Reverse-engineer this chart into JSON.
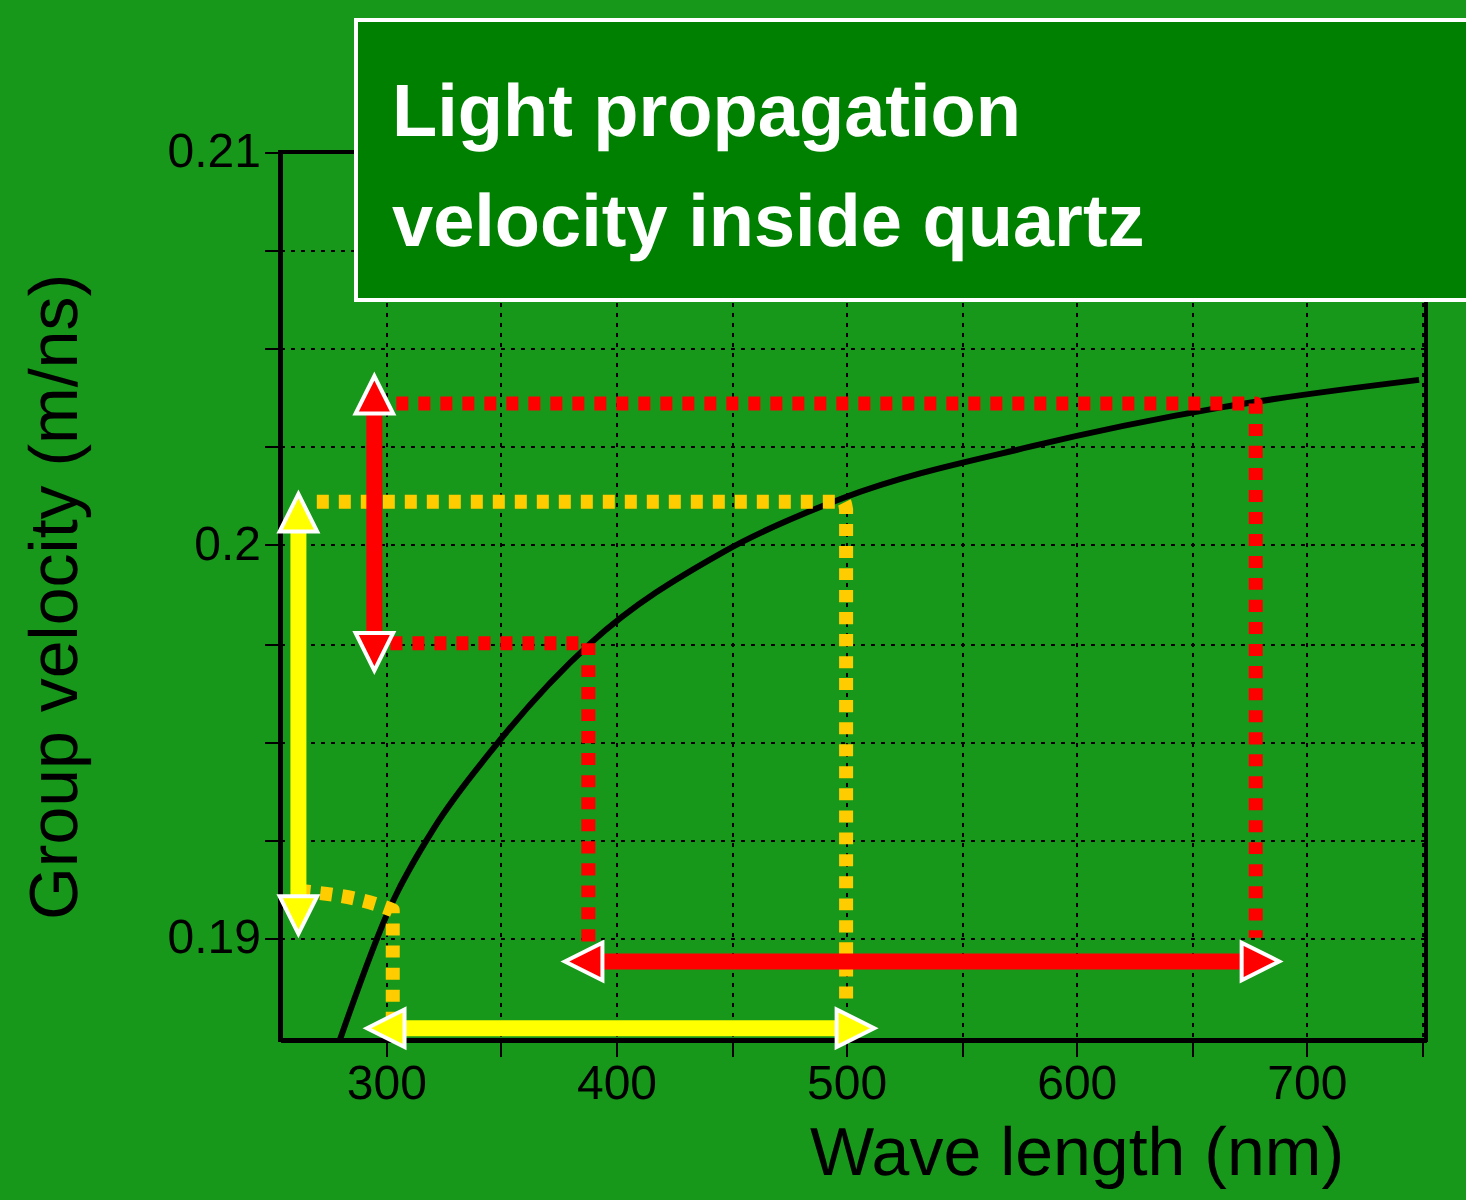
{
  "chart_data": {
    "type": "line",
    "title": "Light propagation velocity inside quartz",
    "xlabel": "Wave length (nm)",
    "ylabel": "Group velocity (m/ns)",
    "xlim": [
      254,
      752
    ],
    "ylim": [
      0.1874,
      0.21
    ],
    "xticks": [
      300,
      {
        "value": 350,
        "label": null
      },
      400,
      {
        "value": 450,
        "label": null
      },
      500,
      {
        "value": 550,
        "label": null
      },
      600,
      {
        "value": 650,
        "label": null
      },
      700,
      {
        "value": 750,
        "label": null
      }
    ],
    "yticks": [
      0.19,
      {
        "value": 0.1925,
        "label": null
      },
      {
        "value": 0.195,
        "label": null
      },
      {
        "value": 0.1975,
        "label": null
      },
      0.2,
      {
        "value": 0.2025,
        "label": null
      },
      {
        "value": 0.205,
        "label": null
      },
      {
        "value": 0.2075,
        "label": null
      },
      0.21
    ],
    "grid": true,
    "series": [
      {
        "type": "line",
        "color": "#000000",
        "line_style": "solid",
        "x": [
          280,
          302,
          321,
          345,
          389,
          446,
          499,
          580,
          663,
          749
        ],
        "values": [
          0.1874,
          0.1908,
          0.1928,
          0.1947,
          0.1975,
          0.1998,
          0.2012,
          0.2025,
          0.2035,
          0.2042
        ]
      },
      {
        "type": "line",
        "color": "#ff0000",
        "line_style": "dotted",
        "x": [
          295,
          678,
          678
        ],
        "values": [
          0.2036,
          0.2036,
          0.19
        ]
      },
      {
        "type": "line",
        "color": "#ff0000",
        "line_style": "dotted",
        "x": [
          302,
          388,
          388
        ],
        "values": [
          0.1975,
          0.1975,
          0.1893
        ]
      },
      {
        "type": "line",
        "color": "#ffcc00",
        "line_style": "dotted",
        "x": [
          270,
          499,
          500,
          500
        ],
        "values": [
          0.2011,
          0.2011,
          0.2009,
          0.1884
        ]
      },
      {
        "type": "line",
        "color": "#ffcc00",
        "line_style": "dotted",
        "x": [
          262,
          303,
          303
        ],
        "values": [
          0.1912,
          0.1907,
          0.1879
        ]
      },
      {
        "type": "line",
        "color": "#ff0000",
        "line_style": "solid",
        "marker": "triangle",
        "x": [
          295,
          295
        ],
        "values": [
          0.2037,
          0.1974
        ]
      },
      {
        "type": "line",
        "color": "#ffff00",
        "line_style": "solid",
        "marker": "triangle",
        "x": [
          262,
          262
        ],
        "values": [
          0.2007,
          0.1907
        ]
      },
      {
        "type": "line",
        "color": "#ff0000",
        "line_style": "solid",
        "marker": "triangle",
        "x": [
          388,
          678
        ],
        "values": [
          0.1894,
          0.1894
        ]
      },
      {
        "type": "line",
        "color": "#ffff00",
        "line_style": "solid",
        "marker": "triangle",
        "x": [
          302,
          502
        ],
        "values": [
          0.1877,
          0.1877
        ]
      }
    ]
  }
}
